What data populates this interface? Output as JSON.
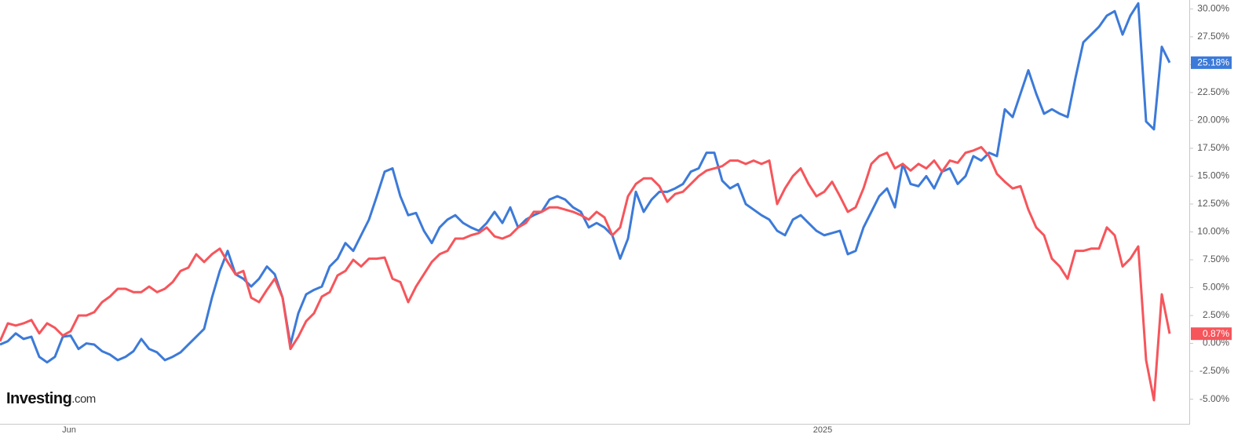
{
  "chart_data": {
    "type": "line",
    "categories": [
      null,
      null,
      null,
      null,
      null,
      null,
      null,
      null,
      null,
      "Jun",
      null,
      null,
      null,
      null,
      null,
      null,
      null,
      null,
      null,
      null,
      null,
      null,
      null,
      null,
      null,
      null,
      null,
      null,
      null,
      null,
      null,
      null,
      null,
      null,
      null,
      null,
      null,
      null,
      null,
      null,
      null,
      null,
      null,
      null,
      null,
      null,
      null,
      null,
      null,
      null,
      null,
      null,
      null,
      null,
      null,
      null,
      null,
      null,
      null,
      null,
      null,
      null,
      null,
      null,
      null,
      null,
      null,
      null,
      null,
      null,
      null,
      null,
      null,
      null,
      null,
      null,
      null,
      null,
      null,
      null,
      null,
      null,
      null,
      null,
      null,
      null,
      null,
      null,
      null,
      null,
      null,
      null,
      null,
      null,
      null,
      null,
      null,
      null,
      null,
      null,
      null,
      null,
      null,
      null,
      null,
      "2025",
      null,
      null,
      null,
      null,
      null,
      null,
      null,
      null,
      null,
      null,
      null,
      null,
      null,
      null,
      null,
      null,
      null,
      null,
      null,
      null,
      null,
      null,
      null,
      null,
      null,
      null,
      null,
      null,
      null,
      null,
      null,
      null,
      null,
      null,
      null,
      null,
      null,
      null,
      null,
      null,
      null,
      null,
      null,
      null
    ],
    "series": [
      {
        "color": "#3c7ad9",
        "end_label": "25.18%",
        "values": [
          -0.1,
          0.2,
          0.9,
          0.4,
          0.6,
          -1.2,
          -1.7,
          -1.2,
          0.6,
          0.7,
          -0.5,
          0.0,
          -0.1,
          -0.7,
          -1.0,
          -1.5,
          -1.2,
          -0.7,
          0.4,
          -0.5,
          -0.8,
          -1.5,
          -1.2,
          -0.8,
          -0.1,
          0.6,
          1.3,
          4.1,
          6.5,
          8.3,
          6.2,
          5.8,
          5.1,
          5.8,
          6.9,
          6.2,
          4.1,
          -0.1,
          2.7,
          4.4,
          4.8,
          5.1,
          6.9,
          7.6,
          9.0,
          8.3,
          9.7,
          11.1,
          13.2,
          15.4,
          15.7,
          13.2,
          11.5,
          11.7,
          10.1,
          9.0,
          10.4,
          11.1,
          11.5,
          10.8,
          10.4,
          10.1,
          10.8,
          11.8,
          10.8,
          12.2,
          10.4,
          11.1,
          11.5,
          11.8,
          12.9,
          13.2,
          12.9,
          12.2,
          11.8,
          10.4,
          10.8,
          10.4,
          9.7,
          7.6,
          9.4,
          13.6,
          11.8,
          12.9,
          13.6,
          13.6,
          13.9,
          14.3,
          15.4,
          15.7,
          17.1,
          17.1,
          14.6,
          13.9,
          14.3,
          12.5,
          12.0,
          11.5,
          11.1,
          10.1,
          9.7,
          11.1,
          11.5,
          10.8,
          10.1,
          9.7,
          9.9,
          10.1,
          8.0,
          8.3,
          10.4,
          11.8,
          13.2,
          13.9,
          12.2,
          16.1,
          14.3,
          14.1,
          15.0,
          13.9,
          15.4,
          15.7,
          14.3,
          15.0,
          16.8,
          16.4,
          17.1,
          16.8,
          21.0,
          20.3,
          22.4,
          24.5,
          22.4,
          20.6,
          21.0,
          20.6,
          20.3,
          23.8,
          27.0,
          27.7,
          28.4,
          29.4,
          29.8,
          27.7,
          29.4,
          30.5,
          19.9,
          19.2,
          26.6,
          25.18
        ]
      },
      {
        "color": "#f6555b",
        "end_label": "0.87%",
        "values": [
          0.2,
          1.8,
          1.6,
          1.8,
          2.1,
          0.9,
          1.8,
          1.4,
          0.7,
          1.1,
          2.5,
          2.5,
          2.8,
          3.7,
          4.2,
          4.9,
          4.9,
          4.6,
          4.6,
          5.1,
          4.6,
          4.9,
          5.5,
          6.5,
          6.8,
          8.0,
          7.3,
          8.0,
          8.5,
          7.3,
          6.2,
          6.5,
          4.1,
          3.7,
          4.8,
          5.8,
          4.1,
          -0.5,
          0.6,
          2.0,
          2.7,
          4.2,
          4.6,
          6.1,
          6.5,
          7.5,
          6.9,
          7.6,
          7.6,
          7.7,
          5.8,
          5.5,
          3.7,
          5.1,
          6.2,
          7.3,
          8.0,
          8.3,
          9.4,
          9.4,
          9.7,
          9.9,
          10.4,
          9.6,
          9.4,
          9.7,
          10.4,
          10.8,
          11.8,
          11.8,
          12.2,
          12.2,
          12.0,
          11.8,
          11.5,
          11.1,
          11.8,
          11.3,
          9.7,
          10.4,
          13.2,
          14.3,
          14.8,
          14.8,
          14.1,
          12.7,
          13.4,
          13.6,
          14.3,
          15.0,
          15.5,
          15.7,
          15.9,
          16.4,
          16.4,
          16.1,
          16.4,
          16.1,
          16.4,
          12.5,
          13.9,
          15.0,
          15.7,
          14.3,
          13.2,
          13.6,
          14.5,
          13.2,
          11.8,
          12.2,
          13.9,
          16.1,
          16.8,
          17.1,
          15.7,
          16.1,
          15.5,
          16.1,
          15.7,
          16.4,
          15.4,
          16.4,
          16.2,
          17.1,
          17.3,
          17.6,
          16.8,
          15.2,
          14.5,
          13.9,
          14.1,
          12.0,
          10.4,
          9.7,
          7.6,
          6.9,
          5.8,
          8.3,
          8.3,
          8.5,
          8.5,
          10.4,
          9.7,
          6.9,
          7.6,
          8.7,
          -1.5,
          -5.1,
          4.4,
          0.87
        ]
      }
    ],
    "ylim": [
      -7,
      30.8
    ],
    "yticks": [
      {
        "value": -5,
        "label": "-5.00%"
      },
      {
        "value": -2.5,
        "label": "-2.50%"
      },
      {
        "value": 0,
        "label": "0.00%"
      },
      {
        "value": 2.5,
        "label": "2.50%"
      },
      {
        "value": 5,
        "label": "5.00%"
      },
      {
        "value": 7.5,
        "label": "7.50%"
      },
      {
        "value": 10,
        "label": "10.00%"
      },
      {
        "value": 12.5,
        "label": "12.50%"
      },
      {
        "value": 15,
        "label": "15.00%"
      },
      {
        "value": 17.5,
        "label": "17.50%"
      },
      {
        "value": 20,
        "label": "20.00%"
      },
      {
        "value": 22.5,
        "label": "22.50%"
      },
      {
        "value": 25,
        "label": "25.00%"
      },
      {
        "value": 27.5,
        "label": "27.50%"
      },
      {
        "value": 30,
        "label": "30.00%"
      }
    ],
    "grid": false,
    "logo": {
      "brand": "Investing",
      "suffix": ".com"
    }
  }
}
